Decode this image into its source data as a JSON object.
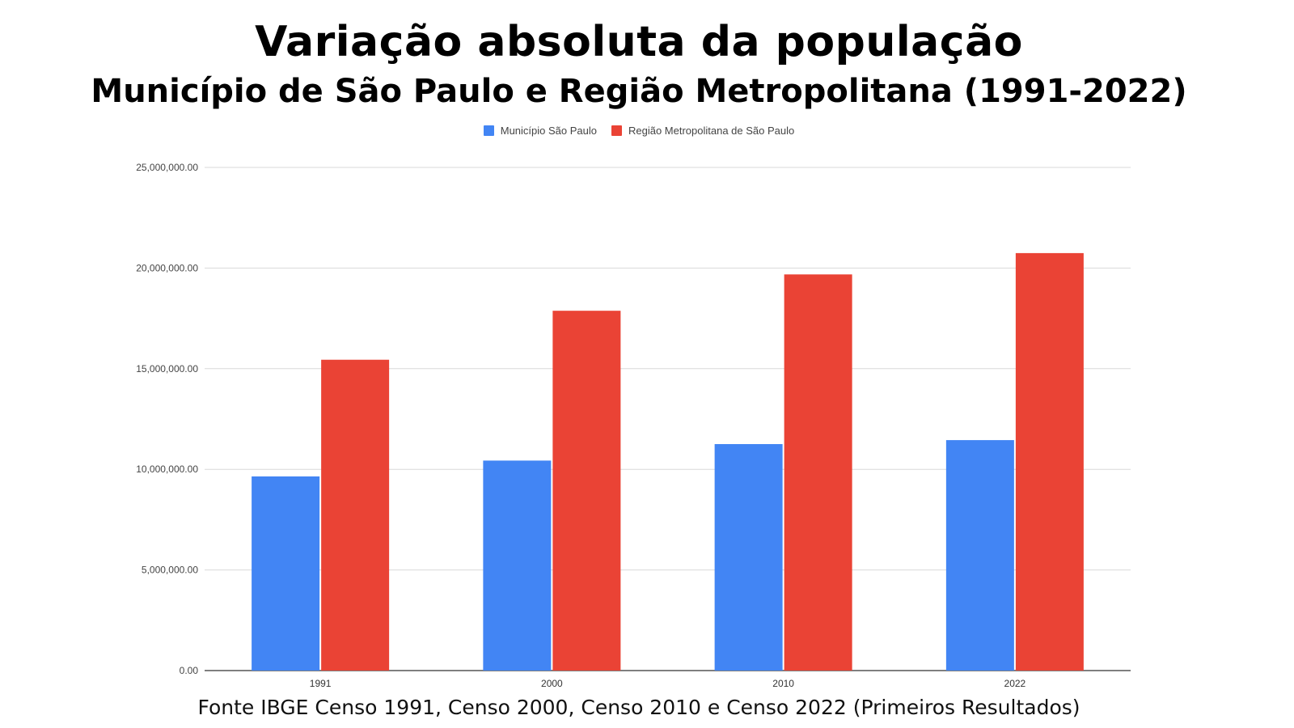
{
  "title": "Variação absoluta da população",
  "subtitle": "Município de São Paulo e Região Metropolitana (1991-2022)",
  "footer": "Fonte IBGE Censo 1991, Censo 2000, Censo 2010 e Censo 2022 (Primeiros Resultados)",
  "chart_data": {
    "type": "bar",
    "categories": [
      "1991",
      "2000",
      "2010",
      "2022"
    ],
    "series": [
      {
        "name": "Município São Paulo",
        "color": "#4285f4",
        "values": [
          9646185,
          10434252,
          11253503,
          11451245
        ]
      },
      {
        "name": "Região Metropolitana de São Paulo",
        "color": "#ea4335",
        "values": [
          15444941,
          17878703,
          19683975,
          20743587
        ]
      }
    ],
    "ylim": [
      0,
      25000000
    ],
    "yticks": [
      0,
      5000000,
      10000000,
      15000000,
      20000000,
      25000000
    ],
    "ytick_labels": [
      "0.00",
      "5,000,000.00",
      "10,000,000.00",
      "15,000,000.00",
      "20,000,000.00",
      "25,000,000.00"
    ],
    "grid": true,
    "legend_position": "top"
  }
}
